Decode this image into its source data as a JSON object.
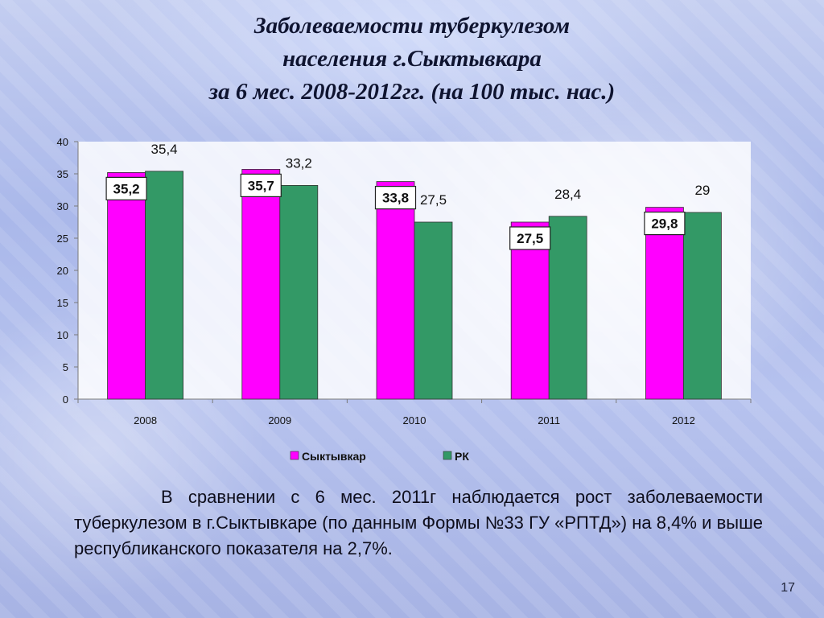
{
  "title": {
    "line1": "Заболеваемости туберкулезом",
    "line2": "населения г.Сыктывкара",
    "line3": "за 6 мес. 2008-2012гг. (на 100 тыс. нас.)"
  },
  "chart_data": {
    "type": "bar",
    "categories": [
      "2008",
      "2009",
      "2010",
      "2011",
      "2012"
    ],
    "series": [
      {
        "name": "Сыктывкар",
        "color": "#ff00ff",
        "values": [
          35.2,
          35.7,
          33.8,
          27.5,
          29.8
        ],
        "labels": [
          "35,2",
          "35,7",
          "33,8",
          "27,5",
          "29,8"
        ]
      },
      {
        "name": "РК",
        "color": "#339966",
        "values": [
          35.4,
          33.2,
          27.5,
          28.4,
          29
        ],
        "labels": [
          "35,4",
          "33,2",
          "27,5",
          "28,4",
          "29"
        ]
      }
    ],
    "ylim": [
      0,
      40
    ],
    "yticks": [
      0,
      5,
      10,
      15,
      20,
      25,
      30,
      35,
      40
    ],
    "grid": false,
    "legend": "bottom"
  },
  "caption": "В сравнении с 6 мес. 2011г наблюдается рост заболеваемости туберкулезом в г.Сыктывкаре (по данным Формы №33 ГУ «РПТД») на 8,4% и выше республиканского показателя на 2,7%.",
  "page_number": "17"
}
